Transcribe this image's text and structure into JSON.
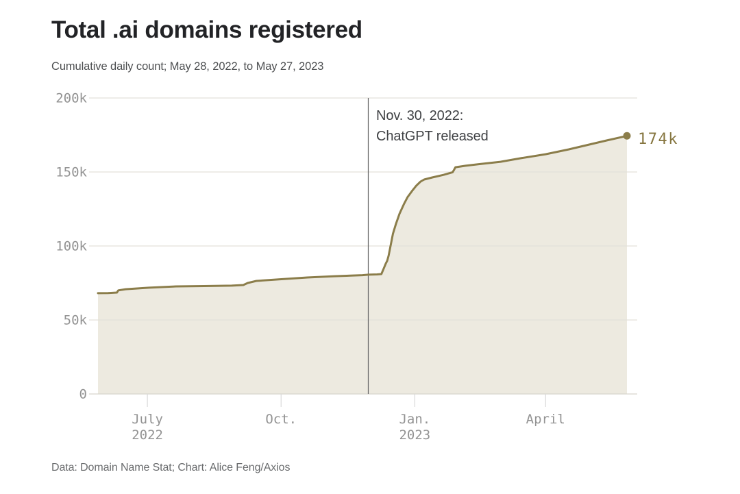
{
  "header": {
    "title": "Total .ai domains registered",
    "subtitle": "Cumulative daily count; May 28, 2022, to May 27, 2023"
  },
  "footer": {
    "credit": "Data: Domain Name Stat; Chart: Alice Feng/Axios"
  },
  "chart_data": {
    "type": "area",
    "title": "Total .ai domains registered",
    "subtitle": "Cumulative daily count; May 28, 2022, to May 27, 2023",
    "units": "domains (values stored in thousands)",
    "x_domain": [
      "May 28, 2022",
      "May 27, 2023"
    ],
    "days": 364,
    "ylim_k": [
      0,
      200
    ],
    "grid": true,
    "legend": "none",
    "y_ticks": [
      {
        "value_k": 0,
        "label": "0"
      },
      {
        "value_k": 50,
        "label": "50k"
      },
      {
        "value_k": 100,
        "label": "100k"
      },
      {
        "value_k": 150,
        "label": "150k"
      },
      {
        "value_k": 200,
        "label": "200k"
      }
    ],
    "x_ticks": [
      {
        "day": 34,
        "lines": [
          "July",
          "2022"
        ]
      },
      {
        "day": 126,
        "lines": [
          "Oct."
        ]
      },
      {
        "day": 218,
        "lines": [
          "Jan.",
          "2023"
        ]
      },
      {
        "day": 308,
        "lines": [
          "April"
        ]
      }
    ],
    "annotation": {
      "line1": "Nov. 30, 2022:",
      "line2": "ChatGPT released",
      "day": 186,
      "date": "Nov. 30, 2022"
    },
    "end_label": "174k",
    "end_value_k": 174,
    "start_value_k": 68,
    "value_at_annotation_k": 81,
    "points_day_valuek": [
      [
        0,
        68.1
      ],
      [
        7,
        68.2
      ],
      [
        13,
        68.5
      ],
      [
        14,
        70.0
      ],
      [
        19,
        70.8
      ],
      [
        35,
        71.8
      ],
      [
        54,
        72.7
      ],
      [
        73,
        72.9
      ],
      [
        92,
        73.2
      ],
      [
        100,
        73.6
      ],
      [
        103,
        75.0
      ],
      [
        109,
        76.4
      ],
      [
        127,
        77.6
      ],
      [
        144,
        78.7
      ],
      [
        163,
        79.6
      ],
      [
        182,
        80.3
      ],
      [
        186,
        80.6
      ],
      [
        192,
        80.8
      ],
      [
        195,
        81.0
      ],
      [
        197,
        85.6
      ],
      [
        198,
        88.0
      ],
      [
        199,
        90.0
      ],
      [
        200,
        93.5
      ],
      [
        201.5,
        101.0
      ],
      [
        203,
        108.3
      ],
      [
        205,
        114.8
      ],
      [
        207.5,
        121.8
      ],
      [
        210.5,
        128.2
      ],
      [
        213,
        132.9
      ],
      [
        216,
        137.0
      ],
      [
        219,
        140.7
      ],
      [
        222,
        143.5
      ],
      [
        224.5,
        144.9
      ],
      [
        230,
        146.3
      ],
      [
        238,
        148.1
      ],
      [
        244,
        149.8
      ],
      [
        245,
        151.4
      ],
      [
        246,
        153.2
      ],
      [
        253,
        154.2
      ],
      [
        262,
        155.3
      ],
      [
        277,
        156.9
      ],
      [
        291,
        159.3
      ],
      [
        308,
        162.0
      ],
      [
        324,
        165.3
      ],
      [
        338,
        168.5
      ],
      [
        350,
        171.3
      ],
      [
        364,
        174.4
      ]
    ],
    "colors": {
      "line": "#8b7d4a",
      "dot": "#8b7d4a",
      "fill": "#edeae0",
      "grid": "#e3e0da",
      "zero_line": "#d6d3cc",
      "tick_mark": "#d9d9d9",
      "axis_text": "#939393",
      "annotation_line": "#636363",
      "annotation_text": "#404245",
      "end_label_text": "#85753f",
      "title_text": "#222326",
      "subtitle_text": "#4d4f51",
      "footer_text": "#696b6d"
    }
  }
}
